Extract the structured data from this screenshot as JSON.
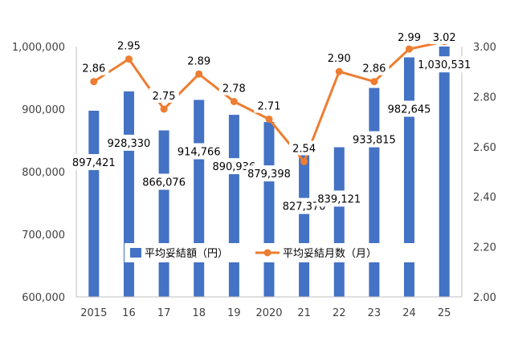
{
  "chart_data": {
    "type": "bar",
    "title": "",
    "xlabel": "",
    "ylabel": "",
    "categories": [
      "2015",
      "16",
      "17",
      "18",
      "19",
      "2020",
      "21",
      "22",
      "23",
      "24",
      "25"
    ],
    "series": [
      {
        "name": "平均妥結額（円）",
        "type": "bar",
        "axis": "left",
        "color": "#4472C4",
        "values": [
          897421,
          928330,
          866076,
          914766,
          890936,
          879398,
          827370,
          839121,
          933815,
          982645,
          1030531
        ],
        "labels": [
          "897,421",
          "928,330",
          "866,076",
          "914,766",
          "890,936",
          "879,398",
          "827,370",
          "839,121",
          "933,815",
          "982,645",
          "1,030,531"
        ]
      },
      {
        "name": "平均妥結月数（月）",
        "type": "line",
        "axis": "right",
        "color": "#ED7D31",
        "values": [
          2.86,
          2.95,
          2.75,
          2.89,
          2.78,
          2.71,
          2.54,
          2.9,
          2.86,
          2.99,
          3.02
        ],
        "labels": [
          "2.86",
          "2.95",
          "2.75",
          "2.89",
          "2.78",
          "2.71",
          "2.54",
          "2.90",
          "2.86",
          "2.99",
          "3.02"
        ]
      }
    ],
    "y_left": {
      "lim": [
        600000,
        1000000
      ],
      "ticks": [
        600000,
        700000,
        800000,
        900000,
        1000000
      ],
      "tick_labels": [
        "600,000",
        "700,000",
        "800,000",
        "900,000",
        "1,000,000"
      ]
    },
    "y_right": {
      "lim": [
        2.0,
        3.0
      ],
      "ticks": [
        2.0,
        2.2,
        2.4,
        2.6,
        2.8,
        3.0
      ],
      "tick_labels": [
        "2.00",
        "2.20",
        "2.40",
        "2.60",
        "2.80",
        "3.00"
      ]
    },
    "grid": false,
    "legend": {
      "position": "bottom-center",
      "entries": [
        "平均妥結額（円）",
        "平均妥結月数（月）"
      ]
    }
  }
}
